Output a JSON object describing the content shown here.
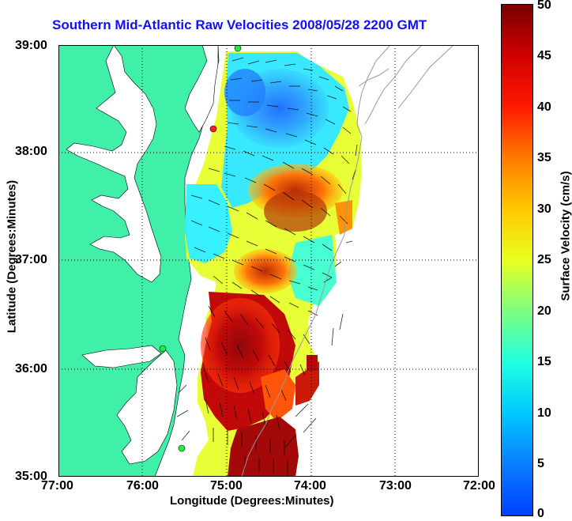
{
  "title": "Southern Mid-Atlantic Raw Velocities 2008/05/28 2200 GMT",
  "axes": {
    "xlabel": "Longitude (Degrees:Minutes)",
    "ylabel": "Latitude (Degrees:Minutes)",
    "xticks": [
      "77:00",
      "76:00",
      "75:00",
      "74:00",
      "73:00",
      "72:00"
    ],
    "yticks": [
      "39:00",
      "38:00",
      "37:00",
      "36:00",
      "35:00"
    ]
  },
  "colorbar": {
    "label": "Surface Velocity (cm/s)",
    "ticks": [
      "50",
      "45",
      "40",
      "35",
      "30",
      "25",
      "20",
      "15",
      "10",
      "5",
      "0"
    ]
  },
  "colors": {
    "land": "#40f0a8",
    "water": "#ffffff",
    "title": "#1010ff"
  }
}
